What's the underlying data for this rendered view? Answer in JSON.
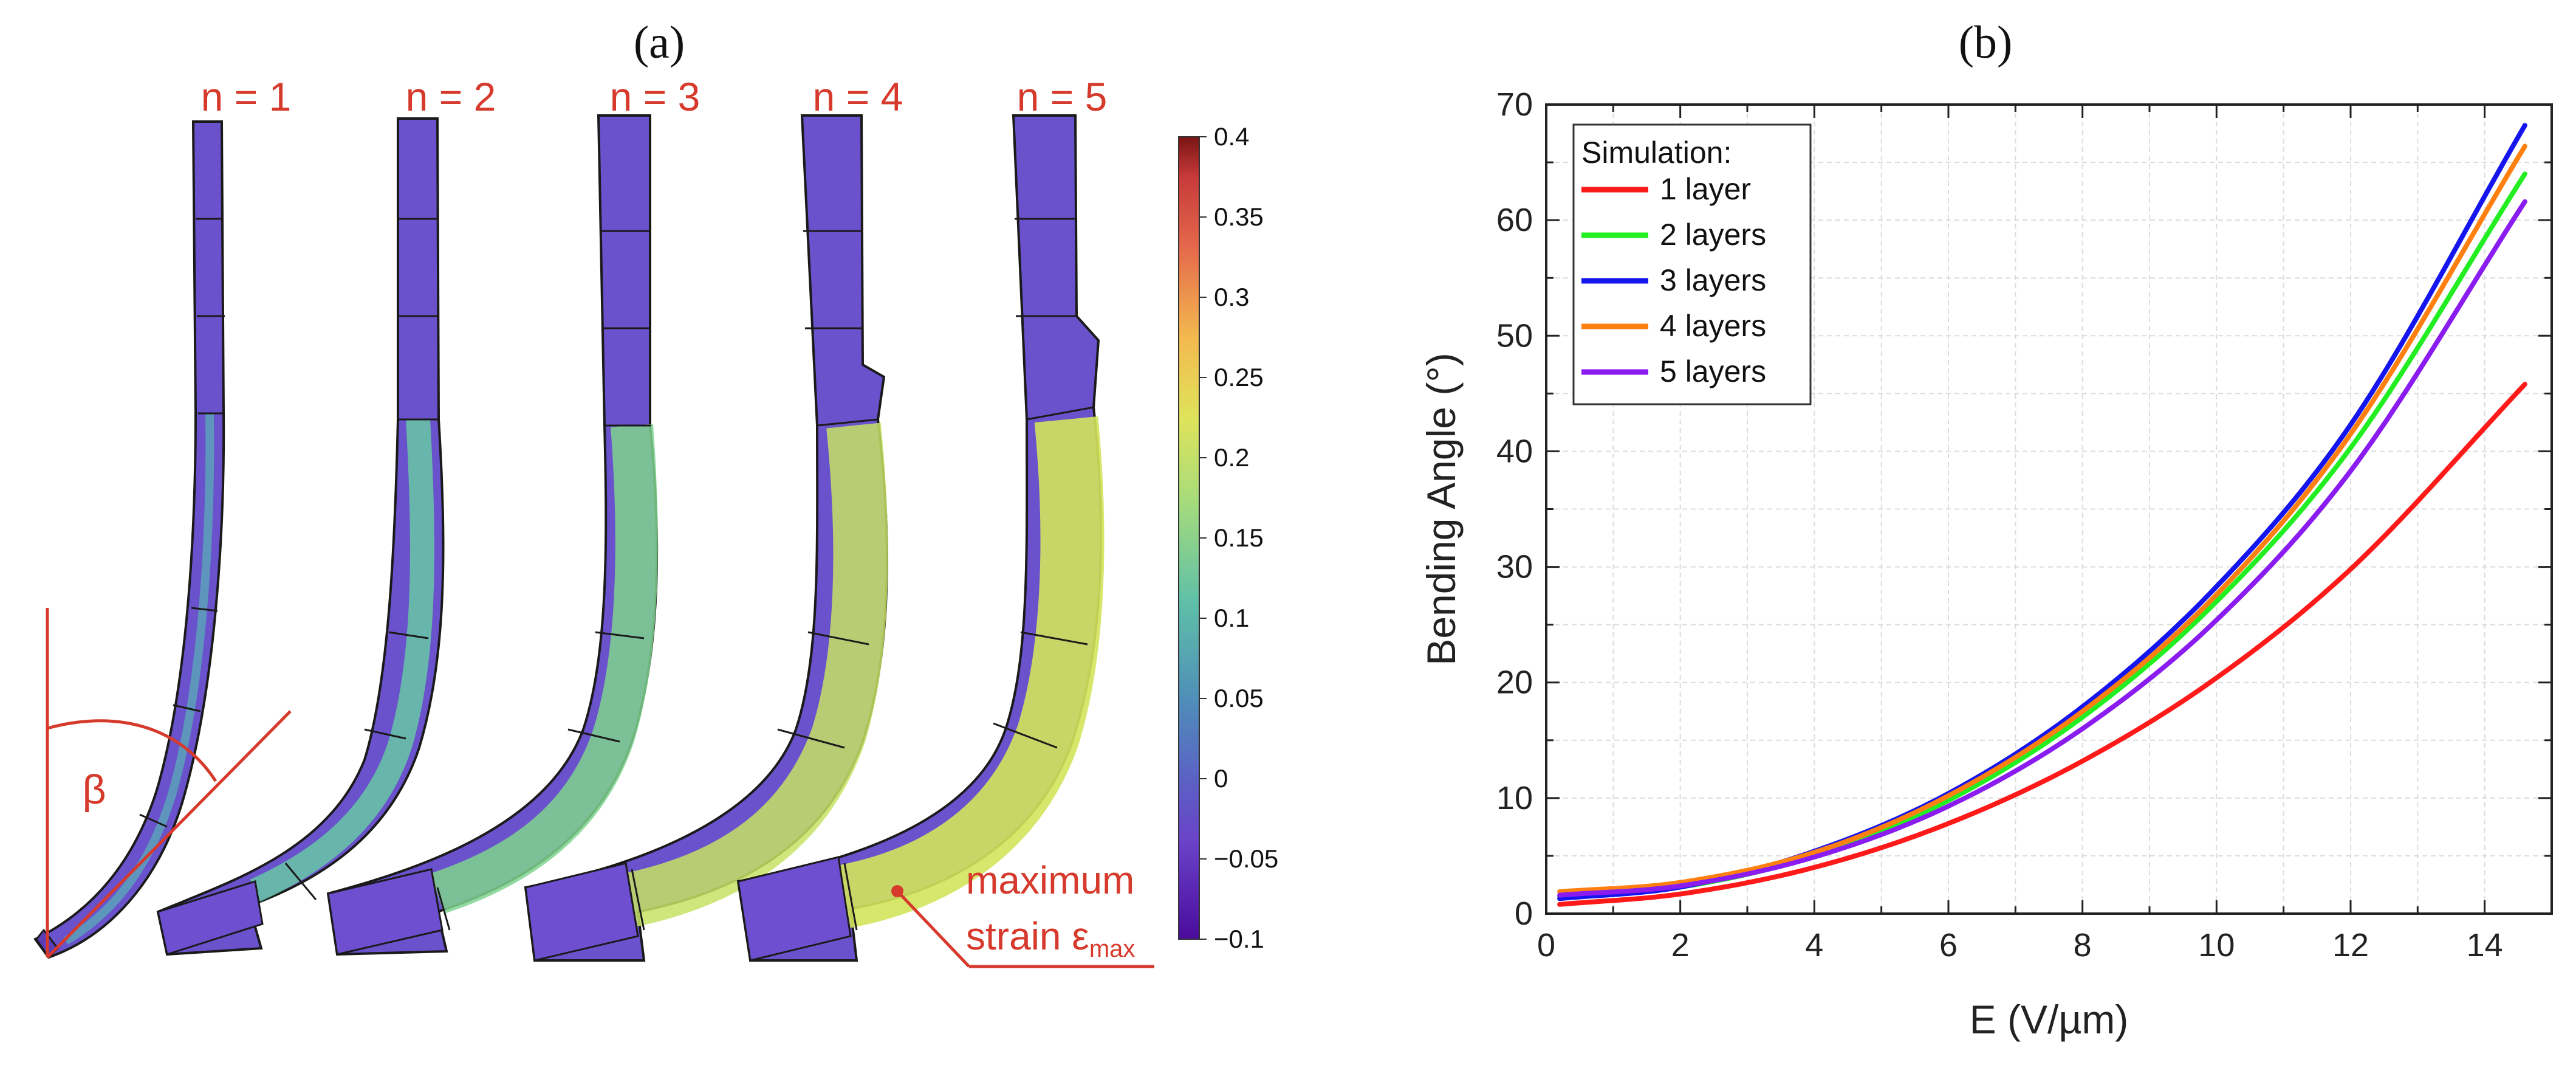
{
  "panel_a": {
    "label": "(a)",
    "layer_labels": [
      "n = 1",
      "n = 2",
      "n = 3",
      "n = 4",
      "n = 5"
    ],
    "angle_symbol": "β",
    "max_strain_line1": "maximum",
    "max_strain_line2": "strain ε",
    "max_strain_subscript": "max",
    "colorbar": {
      "ticks": [
        "0.4",
        "0.35",
        "0.3",
        "0.25",
        "0.2",
        "0.15",
        "0.1",
        "0.05",
        "0",
        "−0.05",
        "−0.1"
      ],
      "range": [
        -0.1,
        0.4
      ]
    }
  },
  "panel_b": {
    "label": "(b)"
  },
  "colors": {
    "accent_red": "#d63a2c",
    "strain_low": "#6b3fc0",
    "strain_mid": "#5aa6b8",
    "strain_high": "#c8e35a"
  },
  "chart_data": {
    "type": "line",
    "title": "",
    "xlabel": "E (V/µm)",
    "ylabel": "Bending Angle (°)",
    "xlim": [
      0,
      15
    ],
    "ylim": [
      0,
      70
    ],
    "xticks": [
      0,
      2,
      4,
      6,
      8,
      10,
      12,
      14
    ],
    "yticks": [
      0,
      10,
      20,
      30,
      40,
      50,
      60,
      70
    ],
    "grid": true,
    "legend_title": "Simulation:",
    "legend_position": "top-left",
    "x": [
      0.2,
      2,
      4,
      6,
      8,
      10,
      12,
      14.6
    ],
    "series": [
      {
        "name": "1 layer",
        "color": "#ff1a1a",
        "values": [
          0.8,
          1.7,
          4.0,
          7.8,
          13.2,
          20.4,
          29.8,
          45.8
        ]
      },
      {
        "name": "2 layers",
        "color": "#22ee22",
        "values": [
          1.5,
          2.3,
          5.0,
          9.8,
          17.0,
          27.0,
          40.3,
          64.0
        ]
      },
      {
        "name": "3 layers",
        "color": "#1515ee",
        "values": [
          1.3,
          2.3,
          5.4,
          10.4,
          17.9,
          28.3,
          42.3,
          68.2
        ]
      },
      {
        "name": "4 layers",
        "color": "#ff8010",
        "values": [
          1.9,
          2.7,
          5.3,
          10.2,
          17.5,
          27.6,
          41.5,
          66.4
        ]
      },
      {
        "name": "5 layers",
        "color": "#8a1cf0",
        "values": [
          1.6,
          2.4,
          4.9,
          9.3,
          16.0,
          25.4,
          38.3,
          61.6
        ]
      }
    ]
  }
}
